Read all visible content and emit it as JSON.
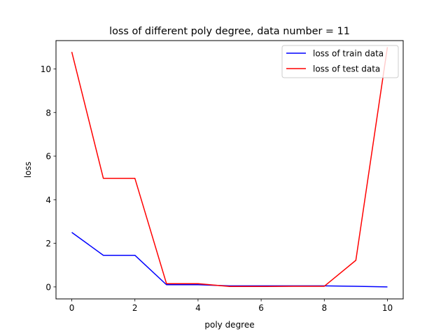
{
  "chart_data": {
    "type": "line",
    "title": "loss of different poly degree, data number = 11",
    "xlabel": "poly degree",
    "ylabel": "loss",
    "x": [
      0,
      1,
      2,
      3,
      4,
      5,
      6,
      7,
      8,
      9,
      10
    ],
    "xlim": [
      -0.5,
      10.5
    ],
    "ylim": [
      -0.55,
      11.3
    ],
    "xticks": [
      0,
      2,
      4,
      6,
      8,
      10
    ],
    "yticks": [
      0,
      2,
      4,
      6,
      8,
      10
    ],
    "grid": false,
    "legend_position": "top-right",
    "series": [
      {
        "name": "loss of train data",
        "color": "#0000ff",
        "values": [
          2.5,
          1.45,
          1.45,
          0.1,
          0.1,
          0.05,
          0.05,
          0.05,
          0.05,
          0.03,
          0.0
        ]
      },
      {
        "name": "loss of test data",
        "color": "#ff0000",
        "values": [
          10.78,
          4.98,
          4.98,
          0.15,
          0.15,
          0.02,
          0.02,
          0.03,
          0.03,
          1.22,
          11.0
        ]
      }
    ]
  }
}
